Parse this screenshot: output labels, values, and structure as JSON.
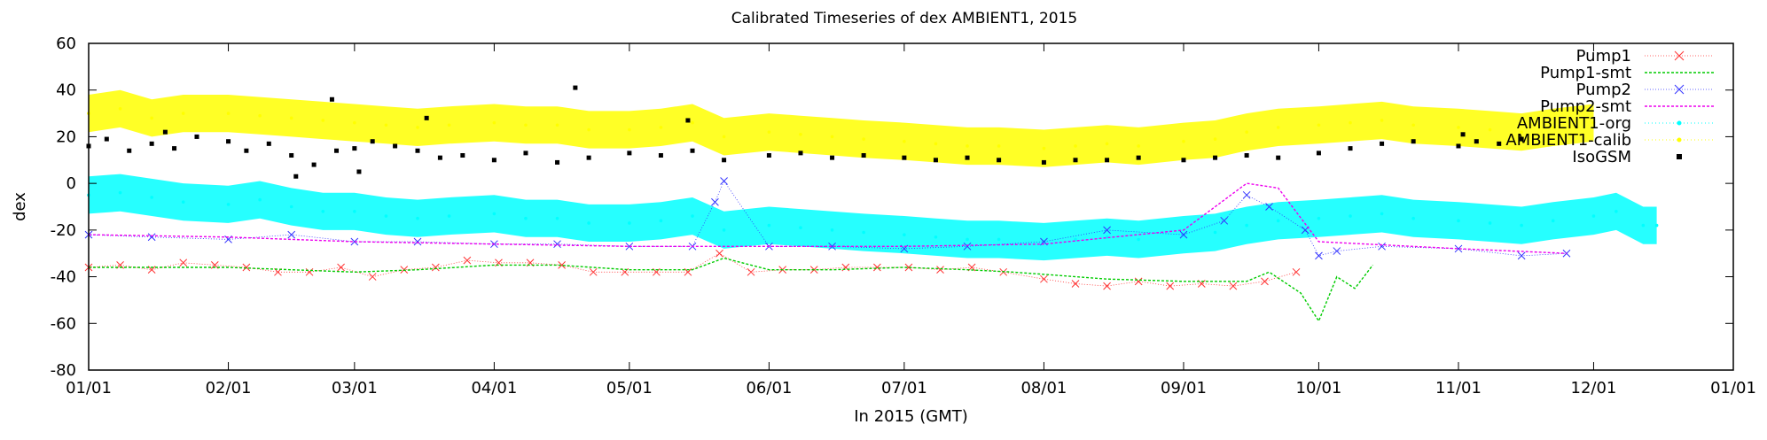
{
  "chart_data": {
    "type": "line",
    "title": "Calibrated Timeseries of dex AMBIENT1, 2015",
    "xlabel": "In 2015 (GMT)",
    "ylabel": "dex",
    "xlim": [
      "2015-01-01",
      "2016-01-01"
    ],
    "ylim": [
      -80,
      60
    ],
    "x_ticks": [
      "01/01",
      "02/01",
      "03/01",
      "04/01",
      "05/01",
      "06/01",
      "07/01",
      "08/01",
      "09/01",
      "10/01",
      "11/01",
      "12/01",
      "01/01"
    ],
    "y_ticks": [
      60,
      40,
      20,
      0,
      -20,
      -40,
      -60,
      -80
    ],
    "grid": false,
    "legend_position": "top-right",
    "series": [
      {
        "name": "Pump1",
        "color": "#ff3333",
        "marker": "x",
        "points": [
          [
            "2015-01-01",
            -36
          ],
          [
            "2015-01-08",
            -35
          ],
          [
            "2015-01-15",
            -37
          ],
          [
            "2015-01-22",
            -34
          ],
          [
            "2015-01-29",
            -35
          ],
          [
            "2015-02-05",
            -36
          ],
          [
            "2015-02-12",
            -38
          ],
          [
            "2015-02-19",
            -38
          ],
          [
            "2015-02-26",
            -36
          ],
          [
            "2015-03-05",
            -40
          ],
          [
            "2015-03-12",
            -37
          ],
          [
            "2015-03-19",
            -36
          ],
          [
            "2015-03-26",
            -33
          ],
          [
            "2015-04-02",
            -34
          ],
          [
            "2015-04-09",
            -34
          ],
          [
            "2015-04-16",
            -35
          ],
          [
            "2015-04-23",
            -38
          ],
          [
            "2015-04-30",
            -38
          ],
          [
            "2015-05-07",
            -38
          ],
          [
            "2015-05-14",
            -38
          ],
          [
            "2015-05-21",
            -30
          ],
          [
            "2015-05-28",
            -38
          ],
          [
            "2015-06-04",
            -37
          ],
          [
            "2015-06-11",
            -37
          ],
          [
            "2015-06-18",
            -36
          ],
          [
            "2015-06-25",
            -36
          ],
          [
            "2015-07-02",
            -36
          ],
          [
            "2015-07-09",
            -37
          ],
          [
            "2015-07-16",
            -36
          ],
          [
            "2015-07-23",
            -38
          ],
          [
            "2015-08-01",
            -41
          ],
          [
            "2015-08-08",
            -43
          ],
          [
            "2015-08-15",
            -44
          ],
          [
            "2015-08-22",
            -42
          ],
          [
            "2015-08-29",
            -44
          ],
          [
            "2015-09-05",
            -43
          ],
          [
            "2015-09-12",
            -44
          ],
          [
            "2015-09-19",
            -42
          ],
          [
            "2015-09-26",
            -38
          ]
        ]
      },
      {
        "name": "Pump1-smt",
        "color": "#00cc00",
        "marker": "line-dashed",
        "points": [
          [
            "2015-01-01",
            -36
          ],
          [
            "2015-01-15",
            -36
          ],
          [
            "2015-02-01",
            -36
          ],
          [
            "2015-02-15",
            -37
          ],
          [
            "2015-03-01",
            -38
          ],
          [
            "2015-03-15",
            -37
          ],
          [
            "2015-04-01",
            -35
          ],
          [
            "2015-04-15",
            -35
          ],
          [
            "2015-05-01",
            -37
          ],
          [
            "2015-05-15",
            -37
          ],
          [
            "2015-05-22",
            -32
          ],
          [
            "2015-06-01",
            -37
          ],
          [
            "2015-06-15",
            -37
          ],
          [
            "2015-07-01",
            -36
          ],
          [
            "2015-07-15",
            -37
          ],
          [
            "2015-07-25",
            -38
          ],
          [
            "2015-08-01",
            -39
          ],
          [
            "2015-08-15",
            -41
          ],
          [
            "2015-09-01",
            -42
          ],
          [
            "2015-09-15",
            -42
          ],
          [
            "2015-09-20",
            -38
          ],
          [
            "2015-09-27",
            -47
          ],
          [
            "2015-10-01",
            -59
          ],
          [
            "2015-10-05",
            -40
          ],
          [
            "2015-10-09",
            -45
          ],
          [
            "2015-10-13",
            -35
          ]
        ]
      },
      {
        "name": "Pump2",
        "color": "#3333ff",
        "marker": "x",
        "points": [
          [
            "2015-01-01",
            -22
          ],
          [
            "2015-01-15",
            -23
          ],
          [
            "2015-02-01",
            -24
          ],
          [
            "2015-02-15",
            -22
          ],
          [
            "2015-03-01",
            -25
          ],
          [
            "2015-03-15",
            -25
          ],
          [
            "2015-04-01",
            -26
          ],
          [
            "2015-04-15",
            -26
          ],
          [
            "2015-05-01",
            -27
          ],
          [
            "2015-05-15",
            -27
          ],
          [
            "2015-05-20",
            -8
          ],
          [
            "2015-05-22",
            1
          ],
          [
            "2015-06-01",
            -27
          ],
          [
            "2015-06-15",
            -27
          ],
          [
            "2015-07-01",
            -28
          ],
          [
            "2015-07-15",
            -27
          ],
          [
            "2015-08-01",
            -25
          ],
          [
            "2015-08-15",
            -20
          ],
          [
            "2015-09-01",
            -22
          ],
          [
            "2015-09-10",
            -16
          ],
          [
            "2015-09-15",
            -5
          ],
          [
            "2015-09-20",
            -10
          ],
          [
            "2015-09-28",
            -20
          ],
          [
            "2015-10-01",
            -31
          ],
          [
            "2015-10-05",
            -29
          ],
          [
            "2015-10-15",
            -27
          ],
          [
            "2015-11-01",
            -28
          ],
          [
            "2015-11-15",
            -31
          ],
          [
            "2015-11-25",
            -30
          ]
        ]
      },
      {
        "name": "Pump2-smt",
        "color": "#ee00ee",
        "marker": "line-dashed",
        "points": [
          [
            "2015-01-01",
            -22
          ],
          [
            "2015-02-01",
            -23
          ],
          [
            "2015-03-01",
            -25
          ],
          [
            "2015-04-01",
            -26
          ],
          [
            "2015-05-01",
            -27
          ],
          [
            "2015-06-01",
            -27
          ],
          [
            "2015-07-01",
            -27
          ],
          [
            "2015-08-01",
            -26
          ],
          [
            "2015-09-01",
            -20
          ],
          [
            "2015-09-15",
            0
          ],
          [
            "2015-09-22",
            -2
          ],
          [
            "2015-10-01",
            -25
          ],
          [
            "2015-11-01",
            -28
          ],
          [
            "2015-11-25",
            -30
          ]
        ]
      },
      {
        "name": "AMBIENT1-org",
        "color": "#00ffff",
        "marker": "dense-points",
        "points": [
          [
            "2015-01-01",
            -5
          ],
          [
            "2015-01-08",
            -4
          ],
          [
            "2015-01-15",
            -6
          ],
          [
            "2015-01-22",
            -8
          ],
          [
            "2015-02-01",
            -9
          ],
          [
            "2015-02-08",
            -7
          ],
          [
            "2015-02-15",
            -10
          ],
          [
            "2015-02-22",
            -12
          ],
          [
            "2015-03-01",
            -12
          ],
          [
            "2015-03-08",
            -14
          ],
          [
            "2015-03-15",
            -15
          ],
          [
            "2015-03-22",
            -14
          ],
          [
            "2015-04-01",
            -13
          ],
          [
            "2015-04-08",
            -15
          ],
          [
            "2015-04-15",
            -15
          ],
          [
            "2015-04-22",
            -17
          ],
          [
            "2015-05-01",
            -17
          ],
          [
            "2015-05-08",
            -16
          ],
          [
            "2015-05-15",
            -14
          ],
          [
            "2015-05-22",
            -20
          ],
          [
            "2015-06-01",
            -18
          ],
          [
            "2015-06-08",
            -19
          ],
          [
            "2015-06-15",
            -20
          ],
          [
            "2015-06-22",
            -21
          ],
          [
            "2015-07-01",
            -22
          ],
          [
            "2015-07-08",
            -23
          ],
          [
            "2015-07-15",
            -24
          ],
          [
            "2015-07-22",
            -24
          ],
          [
            "2015-08-01",
            -25
          ],
          [
            "2015-08-08",
            -24
          ],
          [
            "2015-08-15",
            -23
          ],
          [
            "2015-08-22",
            -24
          ],
          [
            "2015-09-01",
            -22
          ],
          [
            "2015-09-08",
            -21
          ],
          [
            "2015-09-15",
            -18
          ],
          [
            "2015-09-22",
            -16
          ],
          [
            "2015-10-01",
            -15
          ],
          [
            "2015-10-08",
            -14
          ],
          [
            "2015-10-15",
            -13
          ],
          [
            "2015-10-22",
            -15
          ],
          [
            "2015-11-01",
            -16
          ],
          [
            "2015-11-08",
            -17
          ],
          [
            "2015-11-15",
            -18
          ],
          [
            "2015-11-22",
            -16
          ],
          [
            "2015-12-01",
            -14
          ],
          [
            "2015-12-06",
            -12
          ],
          [
            "2015-12-12",
            -18
          ],
          [
            "2015-12-15",
            -18
          ]
        ]
      },
      {
        "name": "AMBIENT1-calib",
        "color": "#ffff00",
        "marker": "dense-points",
        "points": [
          [
            "2015-01-01",
            30
          ],
          [
            "2015-01-08",
            32
          ],
          [
            "2015-01-15",
            28
          ],
          [
            "2015-01-22",
            30
          ],
          [
            "2015-02-01",
            30
          ],
          [
            "2015-02-08",
            29
          ],
          [
            "2015-02-15",
            28
          ],
          [
            "2015-02-22",
            27
          ],
          [
            "2015-03-01",
            26
          ],
          [
            "2015-03-08",
            25
          ],
          [
            "2015-03-15",
            24
          ],
          [
            "2015-03-22",
            25
          ],
          [
            "2015-04-01",
            26
          ],
          [
            "2015-04-08",
            25
          ],
          [
            "2015-04-15",
            25
          ],
          [
            "2015-04-22",
            23
          ],
          [
            "2015-05-01",
            23
          ],
          [
            "2015-05-08",
            24
          ],
          [
            "2015-05-15",
            26
          ],
          [
            "2015-05-22",
            20
          ],
          [
            "2015-06-01",
            22
          ],
          [
            "2015-06-08",
            21
          ],
          [
            "2015-06-15",
            20
          ],
          [
            "2015-06-22",
            19
          ],
          [
            "2015-07-01",
            18
          ],
          [
            "2015-07-08",
            17
          ],
          [
            "2015-07-15",
            16
          ],
          [
            "2015-07-22",
            16
          ],
          [
            "2015-08-01",
            15
          ],
          [
            "2015-08-08",
            16
          ],
          [
            "2015-08-15",
            17
          ],
          [
            "2015-08-22",
            16
          ],
          [
            "2015-09-01",
            18
          ],
          [
            "2015-09-08",
            19
          ],
          [
            "2015-09-15",
            22
          ],
          [
            "2015-09-22",
            24
          ],
          [
            "2015-10-01",
            25
          ],
          [
            "2015-10-08",
            26
          ],
          [
            "2015-10-15",
            27
          ],
          [
            "2015-10-22",
            25
          ],
          [
            "2015-11-01",
            24
          ],
          [
            "2015-11-08",
            23
          ],
          [
            "2015-11-15",
            22
          ],
          [
            "2015-11-22",
            24
          ],
          [
            "2015-12-01",
            26
          ]
        ]
      },
      {
        "name": "IsoGSM",
        "color": "#000000",
        "marker": "square",
        "points": [
          [
            "2015-01-01",
            16
          ],
          [
            "2015-01-05",
            19
          ],
          [
            "2015-01-10",
            14
          ],
          [
            "2015-01-15",
            17
          ],
          [
            "2015-01-20",
            15
          ],
          [
            "2015-01-25",
            20
          ],
          [
            "2015-02-01",
            18
          ],
          [
            "2015-02-05",
            14
          ],
          [
            "2015-02-10",
            17
          ],
          [
            "2015-02-15",
            12
          ],
          [
            "2015-02-20",
            8
          ],
          [
            "2015-02-25",
            14
          ],
          [
            "2015-03-01",
            15
          ],
          [
            "2015-03-05",
            18
          ],
          [
            "2015-03-10",
            16
          ],
          [
            "2015-03-15",
            14
          ],
          [
            "2015-03-20",
            11
          ],
          [
            "2015-03-25",
            12
          ],
          [
            "2015-04-01",
            10
          ],
          [
            "2015-04-08",
            13
          ],
          [
            "2015-04-15",
            9
          ],
          [
            "2015-04-22",
            11
          ],
          [
            "2015-05-01",
            13
          ],
          [
            "2015-05-08",
            12
          ],
          [
            "2015-05-15",
            14
          ],
          [
            "2015-05-22",
            10
          ],
          [
            "2015-06-01",
            12
          ],
          [
            "2015-06-08",
            13
          ],
          [
            "2015-06-15",
            11
          ],
          [
            "2015-06-22",
            12
          ],
          [
            "2015-07-01",
            11
          ],
          [
            "2015-07-08",
            10
          ],
          [
            "2015-07-15",
            11
          ],
          [
            "2015-07-22",
            10
          ],
          [
            "2015-08-01",
            9
          ],
          [
            "2015-08-08",
            10
          ],
          [
            "2015-08-15",
            10
          ],
          [
            "2015-08-22",
            11
          ],
          [
            "2015-09-01",
            10
          ],
          [
            "2015-09-08",
            11
          ],
          [
            "2015-09-15",
            12
          ],
          [
            "2015-09-22",
            11
          ],
          [
            "2015-10-01",
            13
          ],
          [
            "2015-10-08",
            15
          ],
          [
            "2015-10-15",
            17
          ],
          [
            "2015-10-22",
            18
          ],
          [
            "2015-11-01",
            16
          ],
          [
            "2015-11-05",
            18
          ],
          [
            "2015-11-10",
            17
          ],
          [
            "2015-11-15",
            19
          ],
          [
            "2015-01-18",
            22
          ],
          [
            "2015-02-24",
            36
          ],
          [
            "2015-03-17",
            28
          ],
          [
            "2015-04-19",
            41
          ],
          [
            "2015-05-14",
            27
          ],
          [
            "2015-02-16",
            3
          ],
          [
            "2015-03-02",
            5
          ],
          [
            "2015-11-02",
            21
          ]
        ]
      }
    ]
  }
}
